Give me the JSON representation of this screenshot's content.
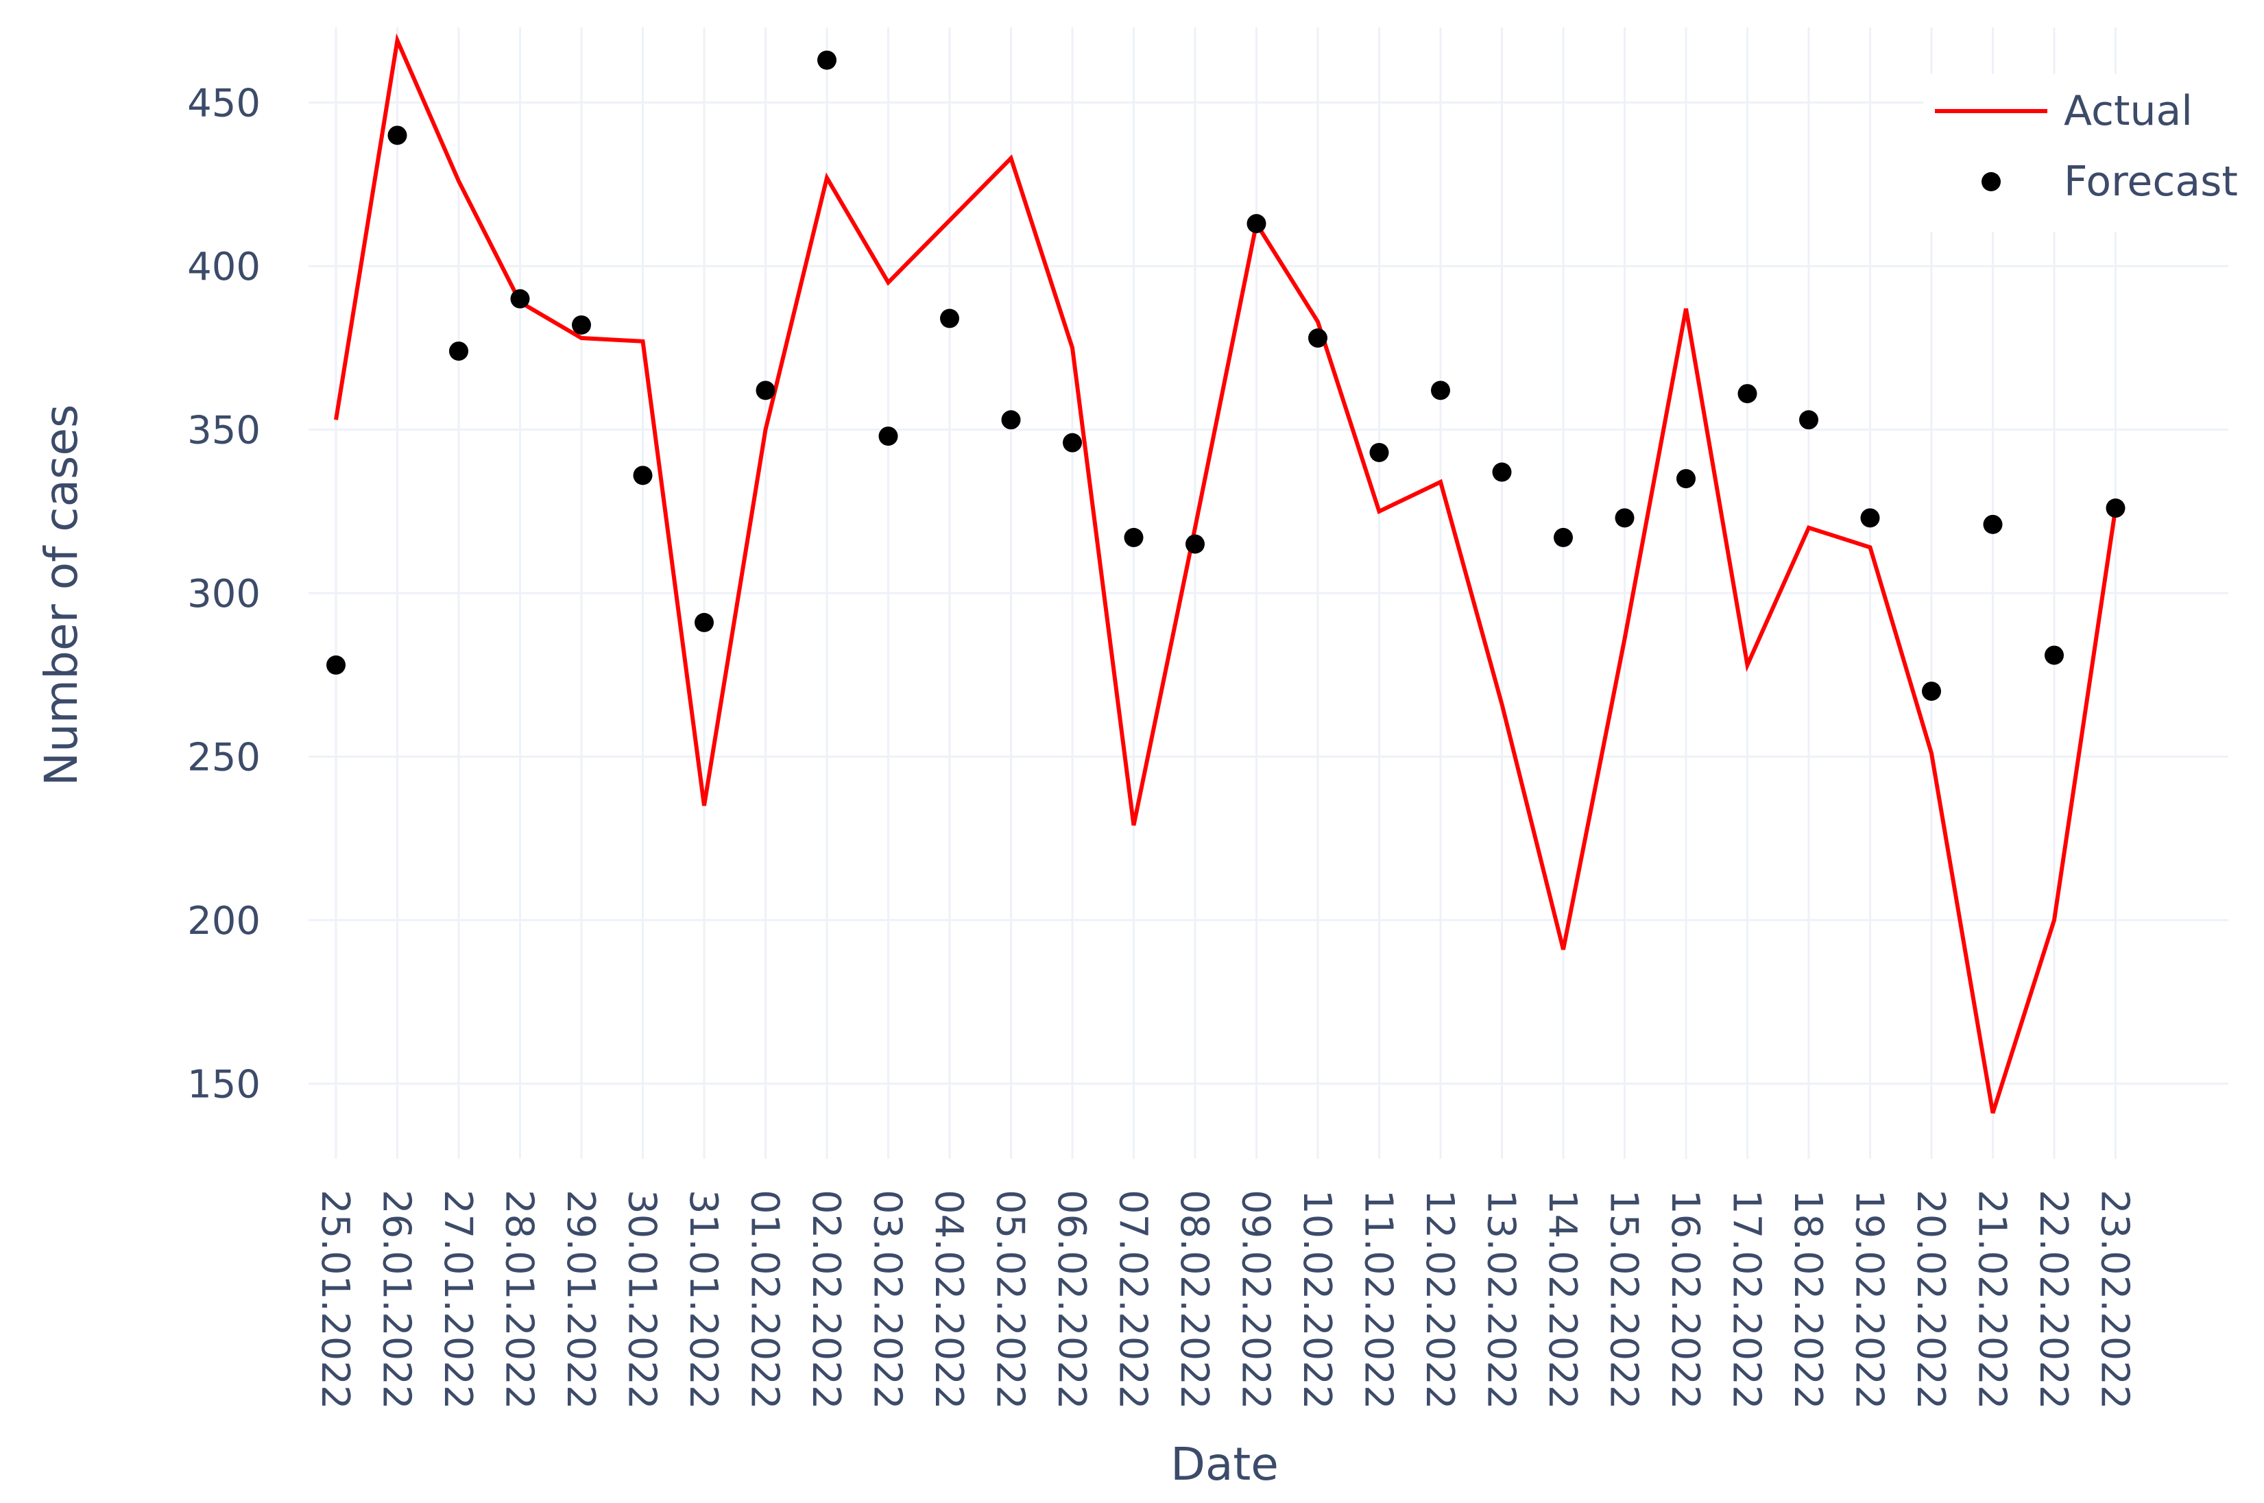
{
  "chart_data": {
    "type": "line",
    "xlabel": "Date",
    "ylabel": "Number of cases",
    "ylim": [
      127,
      473
    ],
    "yticks": [
      150,
      200,
      250,
      300,
      350,
      400,
      450
    ],
    "grid": true,
    "legend_position": "top-right",
    "categories": [
      "25.01.2022",
      "26.01.2022",
      "27.01.2022",
      "28.01.2022",
      "29.01.2022",
      "30.01.2022",
      "31.01.2022",
      "01.02.2022",
      "02.02.2022",
      "03.02.2022",
      "04.02.2022",
      "05.02.2022",
      "06.02.2022",
      "07.02.2022",
      "08.02.2022",
      "09.02.2022",
      "10.02.2022",
      "11.02.2022",
      "12.02.2022",
      "13.02.2022",
      "14.02.2022",
      "15.02.2022",
      "16.02.2022",
      "17.02.2022",
      "18.02.2022",
      "19.02.2022",
      "20.02.2022",
      "21.02.2022",
      "22.02.2022",
      "23.02.2022"
    ],
    "series": [
      {
        "name": "Actual",
        "mode": "line",
        "color": "#ff0000",
        "values": [
          353,
          469,
          426,
          389,
          378,
          377,
          235,
          350,
          427,
          395,
          414,
          433,
          375,
          229,
          320,
          413,
          383,
          325,
          334,
          266,
          191,
          286,
          387,
          278,
          320,
          314,
          251,
          141,
          200,
          326
        ]
      },
      {
        "name": "Forecast",
        "mode": "markers",
        "color": "#000000",
        "values": [
          278,
          440,
          374,
          390,
          382,
          336,
          291,
          362,
          463,
          348,
          384,
          353,
          346,
          317,
          315,
          413,
          378,
          343,
          362,
          337,
          317,
          323,
          335,
          361,
          353,
          323,
          270,
          321,
          281,
          326
        ]
      }
    ]
  }
}
